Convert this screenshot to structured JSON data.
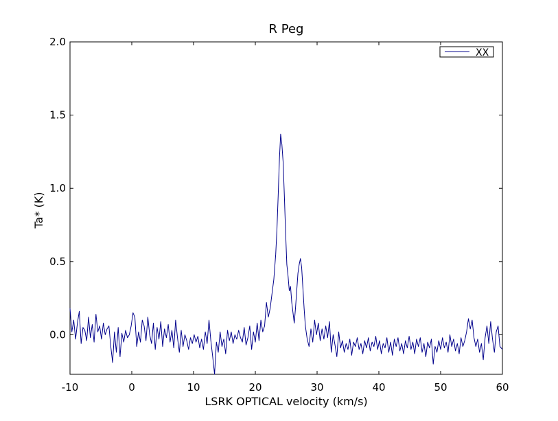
{
  "chart_data": {
    "type": "line",
    "title": "R Peg",
    "xlabel": "LSRK OPTICAL velocity (km/s)",
    "ylabel": "Ta* (K)",
    "xlim": [
      -10,
      60
    ],
    "ylim": [
      -0.27,
      2.0
    ],
    "xticks": [
      -10,
      0,
      10,
      20,
      30,
      40,
      50,
      60
    ],
    "xtick_labels": [
      "-10",
      "0",
      "10",
      "20",
      "30",
      "40",
      "50",
      "60"
    ],
    "yticks": [
      0.0,
      0.5,
      1.0,
      1.5,
      2.0
    ],
    "ytick_labels": [
      "0.0",
      "0.5",
      "1.0",
      "1.5",
      "2.0"
    ],
    "grid": false,
    "legend_position": "top-right",
    "series": [
      {
        "name": "XX",
        "color": "#00008b",
        "points": [
          [
            -10.0,
            0.18
          ],
          [
            -9.7,
            0.02
          ],
          [
            -9.4,
            0.1
          ],
          [
            -9.1,
            -0.03
          ],
          [
            -8.8,
            0.08
          ],
          [
            -8.5,
            0.16
          ],
          [
            -8.2,
            -0.06
          ],
          [
            -7.9,
            0.05
          ],
          [
            -7.6,
            0.03
          ],
          [
            -7.3,
            -0.04
          ],
          [
            -7.0,
            0.12
          ],
          [
            -6.7,
            -0.02
          ],
          [
            -6.4,
            0.07
          ],
          [
            -6.1,
            -0.05
          ],
          [
            -5.8,
            0.14
          ],
          [
            -5.5,
            0.02
          ],
          [
            -5.2,
            0.06
          ],
          [
            -4.9,
            -0.03
          ],
          [
            -4.6,
            0.08
          ],
          [
            -4.3,
            0.0
          ],
          [
            -4.0,
            0.04
          ],
          [
            -3.7,
            0.06
          ],
          [
            -3.4,
            -0.08
          ],
          [
            -3.1,
            -0.19
          ],
          [
            -2.8,
            0.02
          ],
          [
            -2.5,
            -0.12
          ],
          [
            -2.2,
            0.05
          ],
          [
            -1.9,
            -0.15
          ],
          [
            -1.6,
            0.01
          ],
          [
            -1.3,
            -0.05
          ],
          [
            -1.0,
            0.03
          ],
          [
            -0.7,
            -0.02
          ],
          [
            -0.4,
            0.0
          ],
          [
            -0.1,
            0.06
          ],
          [
            0.2,
            0.15
          ],
          [
            0.5,
            0.12
          ],
          [
            0.8,
            -0.08
          ],
          [
            1.1,
            0.02
          ],
          [
            1.4,
            -0.05
          ],
          [
            1.7,
            0.1
          ],
          [
            2.0,
            0.06
          ],
          [
            2.3,
            -0.04
          ],
          [
            2.6,
            0.12
          ],
          [
            2.9,
            0.0
          ],
          [
            3.2,
            -0.06
          ],
          [
            3.5,
            0.08
          ],
          [
            3.8,
            -0.1
          ],
          [
            4.1,
            0.05
          ],
          [
            4.4,
            -0.03
          ],
          [
            4.7,
            0.09
          ],
          [
            5.0,
            -0.08
          ],
          [
            5.3,
            0.04
          ],
          [
            5.6,
            -0.02
          ],
          [
            5.9,
            0.07
          ],
          [
            6.2,
            -0.05
          ],
          [
            6.5,
            0.03
          ],
          [
            6.8,
            -0.09
          ],
          [
            7.1,
            0.1
          ],
          [
            7.4,
            -0.02
          ],
          [
            7.7,
            -0.12
          ],
          [
            8.0,
            0.03
          ],
          [
            8.3,
            -0.08
          ],
          [
            8.6,
            0.0
          ],
          [
            8.9,
            -0.04
          ],
          [
            9.2,
            -0.1
          ],
          [
            9.5,
            -0.02
          ],
          [
            9.8,
            -0.06
          ],
          [
            10.1,
            0.0
          ],
          [
            10.4,
            -0.05
          ],
          [
            10.7,
            -0.01
          ],
          [
            11.0,
            -0.09
          ],
          [
            11.3,
            -0.03
          ],
          [
            11.6,
            -0.1
          ],
          [
            11.9,
            0.02
          ],
          [
            12.2,
            -0.06
          ],
          [
            12.5,
            0.1
          ],
          [
            12.8,
            -0.04
          ],
          [
            13.1,
            -0.15
          ],
          [
            13.4,
            -0.27
          ],
          [
            13.7,
            -0.05
          ],
          [
            14.0,
            -0.12
          ],
          [
            14.3,
            0.02
          ],
          [
            14.6,
            -0.08
          ],
          [
            14.9,
            -0.03
          ],
          [
            15.2,
            -0.13
          ],
          [
            15.5,
            0.03
          ],
          [
            15.8,
            -0.04
          ],
          [
            16.1,
            0.02
          ],
          [
            16.4,
            -0.06
          ],
          [
            16.7,
            0.0
          ],
          [
            17.0,
            -0.03
          ],
          [
            17.3,
            0.03
          ],
          [
            17.6,
            -0.02
          ],
          [
            17.9,
            -0.05
          ],
          [
            18.2,
            0.05
          ],
          [
            18.5,
            -0.07
          ],
          [
            18.8,
            -0.02
          ],
          [
            19.1,
            0.06
          ],
          [
            19.4,
            -0.1
          ],
          [
            19.7,
            0.02
          ],
          [
            20.0,
            -0.05
          ],
          [
            20.3,
            0.08
          ],
          [
            20.6,
            -0.04
          ],
          [
            20.9,
            0.1
          ],
          [
            21.2,
            0.02
          ],
          [
            21.5,
            0.06
          ],
          [
            21.8,
            0.22
          ],
          [
            22.1,
            0.12
          ],
          [
            22.4,
            0.18
          ],
          [
            22.7,
            0.28
          ],
          [
            23.0,
            0.38
          ],
          [
            23.3,
            0.55
          ],
          [
            23.5,
            0.72
          ],
          [
            23.7,
            0.95
          ],
          [
            23.9,
            1.2
          ],
          [
            24.1,
            1.37
          ],
          [
            24.3,
            1.3
          ],
          [
            24.5,
            1.18
          ],
          [
            24.7,
            0.95
          ],
          [
            24.9,
            0.7
          ],
          [
            25.1,
            0.48
          ],
          [
            25.3,
            0.4
          ],
          [
            25.5,
            0.3
          ],
          [
            25.7,
            0.33
          ],
          [
            25.9,
            0.22
          ],
          [
            26.1,
            0.15
          ],
          [
            26.3,
            0.08
          ],
          [
            26.5,
            0.18
          ],
          [
            26.7,
            0.3
          ],
          [
            26.9,
            0.42
          ],
          [
            27.1,
            0.48
          ],
          [
            27.3,
            0.52
          ],
          [
            27.5,
            0.46
          ],
          [
            27.7,
            0.32
          ],
          [
            27.9,
            0.18
          ],
          [
            28.1,
            0.06
          ],
          [
            28.4,
            -0.03
          ],
          [
            28.7,
            -0.08
          ],
          [
            29.0,
            0.04
          ],
          [
            29.3,
            -0.05
          ],
          [
            29.6,
            0.1
          ],
          [
            29.9,
            0.0
          ],
          [
            30.2,
            0.08
          ],
          [
            30.5,
            -0.04
          ],
          [
            30.8,
            0.04
          ],
          [
            31.1,
            -0.03
          ],
          [
            31.4,
            0.06
          ],
          [
            31.7,
            -0.02
          ],
          [
            32.0,
            0.09
          ],
          [
            32.3,
            -0.12
          ],
          [
            32.6,
            0.0
          ],
          [
            32.9,
            -0.07
          ],
          [
            33.2,
            -0.15
          ],
          [
            33.5,
            0.02
          ],
          [
            33.8,
            -0.09
          ],
          [
            34.1,
            -0.04
          ],
          [
            34.4,
            -0.12
          ],
          [
            34.7,
            -0.06
          ],
          [
            35.0,
            -0.1
          ],
          [
            35.3,
            -0.03
          ],
          [
            35.6,
            -0.14
          ],
          [
            35.9,
            -0.05
          ],
          [
            36.2,
            -0.08
          ],
          [
            36.5,
            -0.02
          ],
          [
            36.8,
            -0.1
          ],
          [
            37.1,
            -0.06
          ],
          [
            37.4,
            -0.13
          ],
          [
            37.7,
            -0.04
          ],
          [
            38.0,
            -0.09
          ],
          [
            38.3,
            -0.02
          ],
          [
            38.6,
            -0.11
          ],
          [
            38.9,
            -0.05
          ],
          [
            39.2,
            -0.08
          ],
          [
            39.5,
            -0.01
          ],
          [
            39.8,
            -0.1
          ],
          [
            40.1,
            -0.04
          ],
          [
            40.4,
            -0.13
          ],
          [
            40.7,
            -0.06
          ],
          [
            41.0,
            -0.09
          ],
          [
            41.3,
            -0.02
          ],
          [
            41.6,
            -0.12
          ],
          [
            41.9,
            -0.05
          ],
          [
            42.2,
            -0.14
          ],
          [
            42.5,
            -0.03
          ],
          [
            42.8,
            -0.08
          ],
          [
            43.1,
            -0.02
          ],
          [
            43.4,
            -0.11
          ],
          [
            43.7,
            -0.06
          ],
          [
            44.0,
            -0.13
          ],
          [
            44.3,
            -0.04
          ],
          [
            44.6,
            -0.09
          ],
          [
            44.9,
            -0.01
          ],
          [
            45.2,
            -0.1
          ],
          [
            45.5,
            -0.05
          ],
          [
            45.8,
            -0.13
          ],
          [
            46.1,
            -0.03
          ],
          [
            46.4,
            -0.08
          ],
          [
            46.7,
            -0.02
          ],
          [
            47.0,
            -0.12
          ],
          [
            47.3,
            -0.06
          ],
          [
            47.6,
            -0.15
          ],
          [
            47.9,
            -0.05
          ],
          [
            48.2,
            -0.09
          ],
          [
            48.5,
            -0.03
          ],
          [
            48.8,
            -0.2
          ],
          [
            49.1,
            -0.08
          ],
          [
            49.4,
            -0.12
          ],
          [
            49.7,
            -0.04
          ],
          [
            50.0,
            -0.1
          ],
          [
            50.3,
            -0.02
          ],
          [
            50.6,
            -0.09
          ],
          [
            50.9,
            -0.05
          ],
          [
            51.2,
            -0.12
          ],
          [
            51.5,
            0.0
          ],
          [
            51.8,
            -0.08
          ],
          [
            52.1,
            -0.03
          ],
          [
            52.4,
            -0.11
          ],
          [
            52.7,
            -0.06
          ],
          [
            53.0,
            -0.13
          ],
          [
            53.3,
            -0.02
          ],
          [
            53.6,
            -0.08
          ],
          [
            53.9,
            -0.04
          ],
          [
            54.2,
            0.02
          ],
          [
            54.5,
            0.11
          ],
          [
            54.8,
            0.04
          ],
          [
            55.1,
            0.1
          ],
          [
            55.4,
            -0.02
          ],
          [
            55.7,
            -0.08
          ],
          [
            56.0,
            -0.03
          ],
          [
            56.3,
            -0.12
          ],
          [
            56.6,
            -0.06
          ],
          [
            56.9,
            -0.17
          ],
          [
            57.2,
            -0.02
          ],
          [
            57.5,
            0.06
          ],
          [
            57.8,
            -0.06
          ],
          [
            58.1,
            0.09
          ],
          [
            58.4,
            -0.03
          ],
          [
            58.7,
            -0.12
          ],
          [
            59.0,
            0.02
          ],
          [
            59.3,
            0.06
          ],
          [
            59.6,
            -0.08
          ],
          [
            60.0,
            -0.1
          ]
        ]
      }
    ]
  }
}
